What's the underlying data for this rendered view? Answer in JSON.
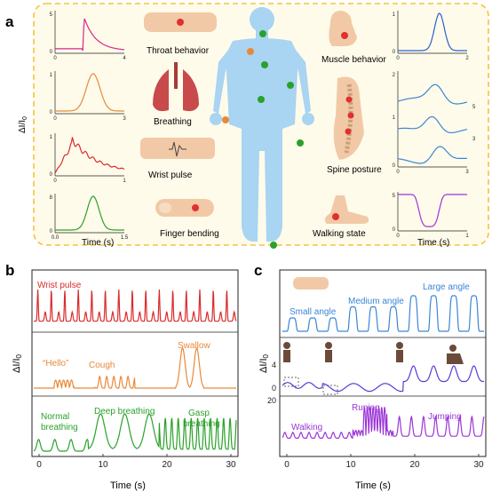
{
  "panel_a": {
    "letter": "a",
    "sites": {
      "throat": "Throat behavior",
      "breathing": "Breathing",
      "wrist": "Wrist pulse",
      "finger": "Finger bending",
      "muscle": "Muscle behavior",
      "spine": "Spine posture",
      "walking": "Walking state"
    },
    "ylabel": "ΔI/I",
    "ylabel_sub": "0",
    "xlabel_left": "Time (s)",
    "xlabel_right": "Time (s)",
    "left_plots": [
      {
        "color": "#d6288c",
        "yticks": [
          "0",
          "5"
        ],
        "xticks": [
          "0",
          "4"
        ]
      },
      {
        "color": "#e8893a",
        "yticks": [
          "0",
          "1"
        ],
        "xticks": [
          "0",
          "3"
        ]
      },
      {
        "color": "#d92c2c",
        "yticks": [
          "0",
          "1"
        ],
        "xticks": [
          "0",
          "1"
        ]
      },
      {
        "color": "#2aa12a",
        "yticks": [
          "0",
          "8"
        ],
        "xticks": [
          "0.0",
          "1.5"
        ]
      }
    ],
    "right_plots": [
      {
        "color": "#2a5fd6",
        "yticks": [
          "0",
          "1"
        ],
        "xticks": [
          "0",
          "2"
        ]
      },
      {
        "color": "#3a86d6",
        "yticks": [
          "0",
          "1",
          "2"
        ],
        "xticks": [
          "0",
          "3"
        ],
        "side_labels": [
          "5",
          "3"
        ]
      },
      {
        "color": "#9b35d6",
        "yticks": [
          "0",
          "5"
        ],
        "xticks": [
          "0",
          "1"
        ]
      }
    ]
  },
  "panel_b": {
    "letter": "b",
    "ylabel": "ΔI/I",
    "ylabel_sub": "0",
    "xlabel": "Time (s)",
    "xticks": [
      "0",
      "10",
      "20",
      "30"
    ],
    "subpanels": [
      {
        "color": "#d92c2c",
        "labels": [
          "Wrist pulse"
        ]
      },
      {
        "color": "#e8893a",
        "labels": [
          "“Hello”",
          "Cough",
          "Swallow"
        ]
      },
      {
        "color": "#2aa12a",
        "labels": [
          "Normal breathing",
          "Deep breathing",
          "Gasp breathing"
        ]
      }
    ]
  },
  "panel_c": {
    "letter": "c",
    "ylabel": "ΔI/I",
    "ylabel_sub": "0",
    "xlabel": "Time (s)",
    "xticks": [
      "0",
      "10",
      "20",
      "30"
    ],
    "yticks": [
      "0",
      "4",
      "20"
    ],
    "subpanels": [
      {
        "color": "#3a86d6",
        "labels": [
          "Small angle",
          "Medium angle",
          "Large angle"
        ]
      },
      {
        "color": "#5a3ad6",
        "labels": []
      },
      {
        "color": "#9b35d6",
        "labels": [
          "Walking",
          "Runing",
          "Jumping"
        ]
      }
    ]
  }
}
